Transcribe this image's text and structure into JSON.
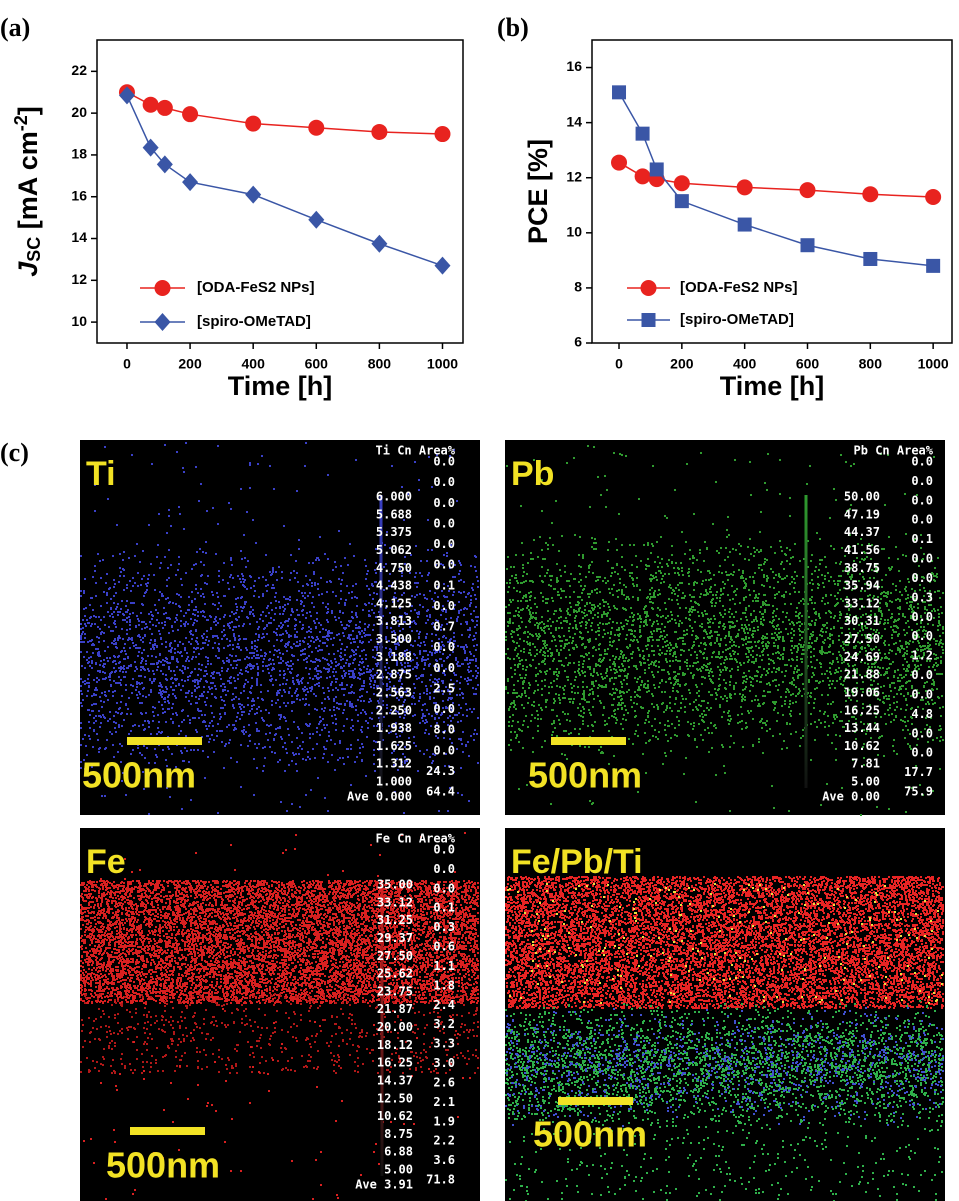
{
  "chart_data": [
    {
      "type": "line",
      "panel_label": "(a)",
      "y_label": {
        "text": "J",
        "sub": "SC",
        "unit": " [mA cm",
        "sup": "-2",
        "end": "]"
      },
      "x_label": "Time [h]",
      "x": [
        0,
        75,
        120,
        200,
        400,
        600,
        800,
        1000
      ],
      "series": [
        {
          "name": "[ODA-FeS2 NPs]",
          "color": "#e8231f",
          "marker": "circle",
          "values": [
            21.0,
            20.4,
            20.25,
            19.95,
            19.5,
            19.3,
            19.1,
            19.0
          ]
        },
        {
          "name": "[spiro-OMeTAD]",
          "color": "#3a56a6",
          "marker": "diamond",
          "values": [
            20.85,
            18.35,
            17.55,
            16.7,
            16.1,
            14.9,
            13.75,
            12.7
          ]
        }
      ],
      "xlim": [
        -95,
        1065
      ],
      "ylim": [
        9,
        23.5
      ],
      "xticks": [
        0,
        200,
        400,
        600,
        800,
        1000
      ],
      "yticks": [
        10,
        12,
        14,
        16,
        18,
        20,
        22
      ],
      "legend": "lower left"
    },
    {
      "type": "line",
      "panel_label": "(b)",
      "y_label": "PCE [%]",
      "x_label": "Time [h]",
      "x": [
        0,
        75,
        120,
        200,
        400,
        600,
        800,
        1000
      ],
      "series": [
        {
          "name": "[ODA-FeS2 NPs]",
          "color": "#e8231f",
          "marker": "circle",
          "values": [
            12.55,
            12.05,
            11.95,
            11.8,
            11.65,
            11.55,
            11.4,
            11.3
          ]
        },
        {
          "name": "[spiro-OMeTAD]",
          "color": "#3a56a6",
          "marker": "square",
          "values": [
            15.1,
            13.6,
            12.3,
            11.15,
            10.3,
            9.55,
            9.05,
            8.8
          ]
        }
      ],
      "xlim": [
        -86,
        1060
      ],
      "ylim": [
        6,
        17
      ],
      "xticks": [
        0,
        200,
        400,
        600,
        800,
        1000
      ],
      "yticks": [
        6,
        8,
        10,
        12,
        14,
        16
      ],
      "legend": "lower left"
    }
  ],
  "figure": {
    "panel_label": "(c)",
    "maps": [
      {
        "element": "Ti",
        "header": "Ti Cn Area%",
        "color": "#3a40c8",
        "scale": [
          "6.000",
          "5.688",
          "5.375",
          "5.062",
          "4.750",
          "4.438",
          "4.125",
          "3.813",
          "3.500",
          "3.188",
          "2.875",
          "2.563",
          "2.250",
          "1.938",
          "1.625",
          "1.312",
          "1.000"
        ],
        "areas": [
          "0.0",
          "0.0",
          "0.0",
          "0.0",
          "0.0",
          "0.0",
          "0.1",
          "0.0",
          "0.7",
          "0.0",
          "0.0",
          "2.5",
          "0.0",
          "8.0",
          "0.0",
          "24.3",
          "64.4"
        ],
        "ave": "Ave 0.000",
        "scale_bar": "500nm"
      },
      {
        "element": "Pb",
        "header": "Pb Cn Area%",
        "color": "#2f9a2f",
        "scale": [
          "50.00",
          "47.19",
          "44.37",
          "41.56",
          "38.75",
          "35.94",
          "33.12",
          "30.31",
          "27.50",
          "24.69",
          "21.88",
          "19.06",
          "16.25",
          "13.44",
          "10.62",
          "7.81",
          "5.00"
        ],
        "areas": [
          "0.0",
          "0.0",
          "0.0",
          "0.0",
          "0.1",
          "0.0",
          "0.0",
          "0.3",
          "0.0",
          "0.0",
          "1.2",
          "0.0",
          "0.0",
          "4.8",
          "0.0",
          "0.0",
          "17.7",
          "75.9"
        ],
        "ave": "Ave 0.00",
        "scale_bar": "500nm"
      },
      {
        "element": "Fe",
        "header": "Fe Cn Area%",
        "color": "#d82020",
        "scale": [
          "35.00",
          "33.12",
          "31.25",
          "29.37",
          "27.50",
          "25.62",
          "23.75",
          "21.87",
          "20.00",
          "18.12",
          "16.25",
          "14.37",
          "12.50",
          "10.62",
          "8.75",
          "6.88",
          "5.00"
        ],
        "areas": [
          "0.0",
          "0.0",
          "0.0",
          "0.1",
          "0.3",
          "0.6",
          "1.1",
          "1.8",
          "2.4",
          "3.2",
          "3.3",
          "3.0",
          "2.6",
          "2.1",
          "1.9",
          "2.2",
          "3.6",
          "71.8"
        ],
        "ave": "Ave 3.91",
        "scale_bar": "500nm"
      },
      {
        "element": "Fe/Pb/Ti",
        "scale_bar": "500nm"
      }
    ]
  }
}
